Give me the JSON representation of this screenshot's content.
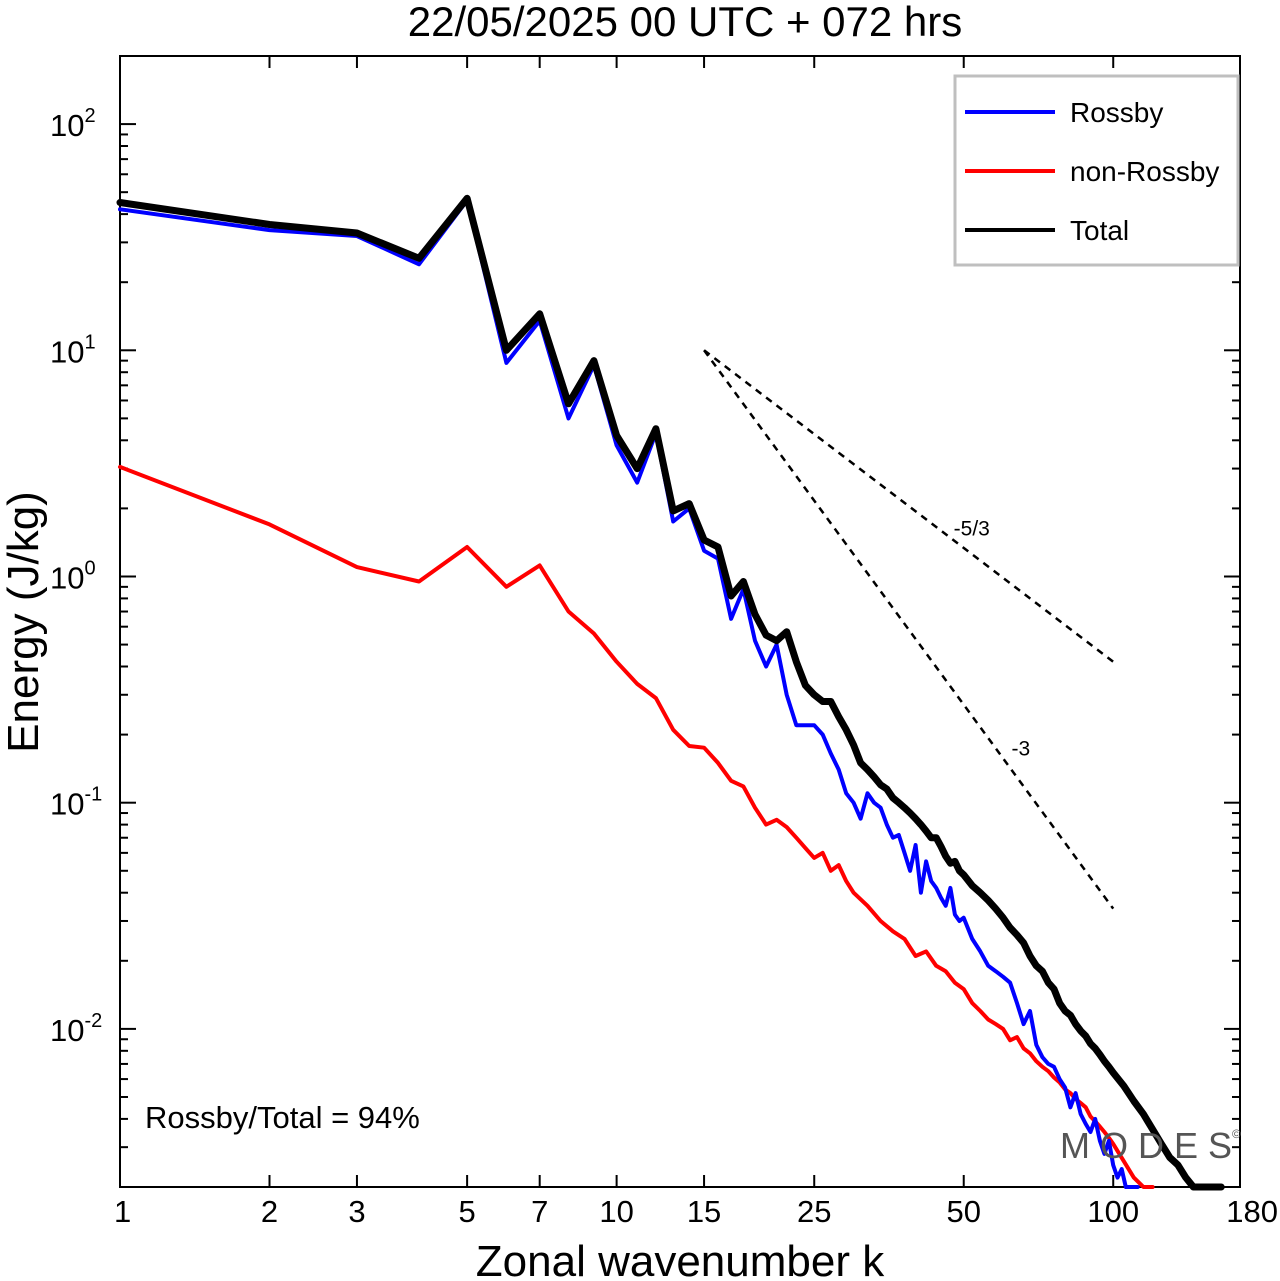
{
  "chart_data": {
    "type": "line",
    "title": "22/05/2025  00 UTC  + 072 hrs",
    "xlabel": "Zonal wavenumber k",
    "ylabel": "Energy (J/kg)",
    "x_scale": "log",
    "y_scale": "log",
    "xlim": [
      1,
      180
    ],
    "ylim": [
      0.002,
      200
    ],
    "x_ticks": [
      1,
      2,
      3,
      5,
      7,
      10,
      15,
      25,
      50,
      100,
      180
    ],
    "x_tick_labels": [
      "1",
      "2",
      "3",
      "5",
      "7",
      "10",
      "15",
      "25",
      "50",
      "100",
      "180"
    ],
    "y_ticks": [
      0.01,
      0.1,
      1,
      10,
      100
    ],
    "y_tick_labels": [
      {
        "base": "10",
        "exp": "-2"
      },
      {
        "base": "10",
        "exp": "-1"
      },
      {
        "base": "10",
        "exp": "0"
      },
      {
        "base": "10",
        "exp": "1"
      },
      {
        "base": "10",
        "exp": "2"
      }
    ],
    "grid": false,
    "legend_position": "top-right",
    "series": [
      {
        "name": "Rossby",
        "color": "#0000ff",
        "x": [
          1,
          2,
          3,
          4,
          5,
          6,
          7,
          8,
          9,
          10,
          11,
          12,
          13,
          14,
          15,
          16,
          17,
          18,
          19,
          20,
          21,
          22,
          23,
          24,
          25,
          26,
          27,
          28,
          29,
          30,
          31,
          32,
          33,
          34,
          35,
          36,
          37,
          38,
          39,
          40,
          41,
          42,
          43,
          44,
          45,
          46,
          47,
          48,
          49,
          50,
          52,
          54,
          56,
          58,
          60,
          62,
          64,
          66,
          68,
          70,
          72,
          74,
          76,
          78,
          80,
          82,
          84,
          86,
          88,
          90,
          92,
          94,
          96,
          98,
          100,
          102,
          104,
          106,
          108,
          110,
          112
        ],
        "y": [
          42,
          34,
          32,
          24,
          46,
          8.8,
          13.5,
          5,
          8.6,
          3.8,
          2.6,
          4.3,
          1.75,
          2,
          1.3,
          1.2,
          0.65,
          0.88,
          0.52,
          0.4,
          0.5,
          0.3,
          0.22,
          0.22,
          0.22,
          0.2,
          0.165,
          0.14,
          0.11,
          0.1,
          0.085,
          0.11,
          0.1,
          0.095,
          0.08,
          0.07,
          0.072,
          0.06,
          0.05,
          0.065,
          0.04,
          0.055,
          0.045,
          0.042,
          0.038,
          0.035,
          0.042,
          0.032,
          0.03,
          0.031,
          0.025,
          0.022,
          0.019,
          0.018,
          0.017,
          0.016,
          0.013,
          0.0105,
          0.012,
          0.0085,
          0.0075,
          0.007,
          0.0068,
          0.006,
          0.0055,
          0.0045,
          0.0052,
          0.0042,
          0.0038,
          0.0035,
          0.004,
          0.0032,
          0.0028,
          0.0032,
          0.0025,
          0.0022,
          0.0024,
          0.002,
          0.0018,
          0.0016,
          0.0015
        ]
      },
      {
        "name": "non-Rossby",
        "color": "#ff0000",
        "x": [
          1,
          2,
          3,
          4,
          5,
          6,
          7,
          8,
          9,
          10,
          11,
          12,
          13,
          14,
          15,
          16,
          17,
          18,
          19,
          20,
          21,
          22,
          23,
          24,
          25,
          26,
          27,
          28,
          29,
          30,
          32,
          34,
          36,
          38,
          40,
          42,
          44,
          46,
          48,
          50,
          52,
          54,
          56,
          58,
          60,
          62,
          64,
          66,
          68,
          70,
          72,
          74,
          76,
          78,
          80,
          82,
          84,
          86,
          88,
          90,
          92,
          94,
          96,
          98,
          100,
          105,
          110,
          115,
          120
        ],
        "y": [
          3.05,
          1.7,
          1.1,
          0.95,
          1.35,
          0.9,
          1.12,
          0.7,
          0.56,
          0.42,
          0.335,
          0.29,
          0.21,
          0.178,
          0.175,
          0.15,
          0.125,
          0.118,
          0.095,
          0.08,
          0.084,
          0.078,
          0.07,
          0.063,
          0.057,
          0.06,
          0.05,
          0.053,
          0.045,
          0.04,
          0.035,
          0.03,
          0.027,
          0.025,
          0.021,
          0.022,
          0.019,
          0.018,
          0.016,
          0.015,
          0.013,
          0.012,
          0.011,
          0.0105,
          0.01,
          0.0089,
          0.0092,
          0.0082,
          0.0078,
          0.0072,
          0.0068,
          0.0065,
          0.0061,
          0.0058,
          0.0054,
          0.0052,
          0.0049,
          0.0047,
          0.0045,
          0.0041,
          0.0039,
          0.0037,
          0.0035,
          0.0033,
          0.0031,
          0.0026,
          0.0022,
          0.0019,
          0.0016
        ]
      },
      {
        "name": "Total",
        "color": "#000000",
        "x": [
          1,
          2,
          3,
          4,
          5,
          6,
          7,
          8,
          9,
          10,
          11,
          12,
          13,
          14,
          15,
          16,
          17,
          18,
          19,
          20,
          21,
          22,
          23,
          24,
          25,
          26,
          27,
          28,
          29,
          30,
          31,
          32,
          33,
          34,
          35,
          36,
          37,
          38,
          39,
          40,
          41,
          42,
          43,
          44,
          45,
          46,
          47,
          48,
          49,
          50,
          52,
          54,
          56,
          58,
          60,
          62,
          64,
          66,
          68,
          70,
          72,
          74,
          76,
          78,
          80,
          82,
          84,
          86,
          88,
          90,
          92,
          94,
          96,
          98,
          100,
          105,
          110,
          115,
          120,
          125,
          130,
          135,
          140,
          145,
          150,
          155,
          160,
          165
        ],
        "y": [
          45,
          36,
          33,
          25.5,
          47,
          10,
          14.5,
          5.8,
          9,
          4.2,
          3,
          4.5,
          1.95,
          2.1,
          1.45,
          1.35,
          0.82,
          0.95,
          0.68,
          0.55,
          0.52,
          0.57,
          0.42,
          0.33,
          0.3,
          0.28,
          0.28,
          0.24,
          0.21,
          0.18,
          0.15,
          0.14,
          0.13,
          0.12,
          0.115,
          0.105,
          0.1,
          0.095,
          0.09,
          0.085,
          0.08,
          0.075,
          0.07,
          0.07,
          0.064,
          0.058,
          0.054,
          0.055,
          0.05,
          0.048,
          0.043,
          0.04,
          0.037,
          0.034,
          0.031,
          0.028,
          0.026,
          0.024,
          0.021,
          0.019,
          0.018,
          0.016,
          0.015,
          0.013,
          0.012,
          0.0115,
          0.0105,
          0.0098,
          0.0093,
          0.0086,
          0.0082,
          0.0077,
          0.0072,
          0.0068,
          0.0064,
          0.0056,
          0.0048,
          0.0042,
          0.0036,
          0.0031,
          0.0027,
          0.0025,
          0.0022,
          0.002,
          0.0018,
          0.0016,
          0.0015,
          0.0013
        ]
      }
    ],
    "reference_lines": [
      {
        "label": "-5/3",
        "slope": -1.6667,
        "x": [
          15,
          100
        ],
        "y": [
          10,
          0.42
        ]
      },
      {
        "label": "-3",
        "slope": -3,
        "x": [
          15,
          100
        ],
        "y": [
          10,
          0.034
        ]
      }
    ],
    "annotations": {
      "ratio_text": "Rossby/Total = 94%",
      "watermark": "MODES"
    }
  },
  "watermark_text": "M O D E S",
  "watermark_symbol": "©"
}
